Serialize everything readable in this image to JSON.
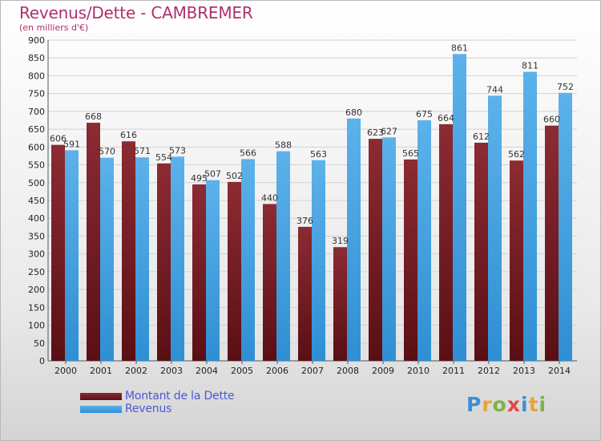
{
  "page": {
    "title": "Revenus/Dette - CAMBREMER",
    "subtitle": "(en milliers d'€)",
    "logo": {
      "text": "Proxiti",
      "letter_colors": [
        "#3a8fd6",
        "#e8a33a",
        "#7cb342",
        "#e04848",
        "#3a8fd6",
        "#e8a33a",
        "#7cb342"
      ]
    }
  },
  "chart_data": {
    "type": "bar",
    "title": "Revenus/Dette - CAMBREMER",
    "subtitle": "(en milliers d'€)",
    "categories": [
      "2000",
      "2001",
      "2002",
      "2003",
      "2004",
      "2005",
      "2006",
      "2007",
      "2008",
      "2009",
      "2010",
      "2011",
      "2012",
      "2013",
      "2014"
    ],
    "series": [
      {
        "name": "Montant de la Dette",
        "color": "#7a1f27",
        "values": [
          606,
          668,
          616,
          554,
          495,
          502,
          440,
          376,
          319,
          623,
          565,
          664,
          612,
          562,
          660
        ]
      },
      {
        "name": "Revenus",
        "color": "#4aa3e0",
        "values": [
          591,
          570,
          571,
          573,
          507,
          566,
          588,
          563,
          680,
          627,
          675,
          861,
          744,
          811,
          752
        ]
      }
    ],
    "ylim": [
      0,
      900
    ],
    "yticks": [
      "0",
      "50",
      "100",
      "150",
      "200",
      "250",
      "300",
      "350",
      "400",
      "450",
      "500",
      "550",
      "600",
      "650",
      "700",
      "750",
      "800",
      "850",
      "900"
    ],
    "grid": true,
    "legend_position": "bottom-left"
  }
}
